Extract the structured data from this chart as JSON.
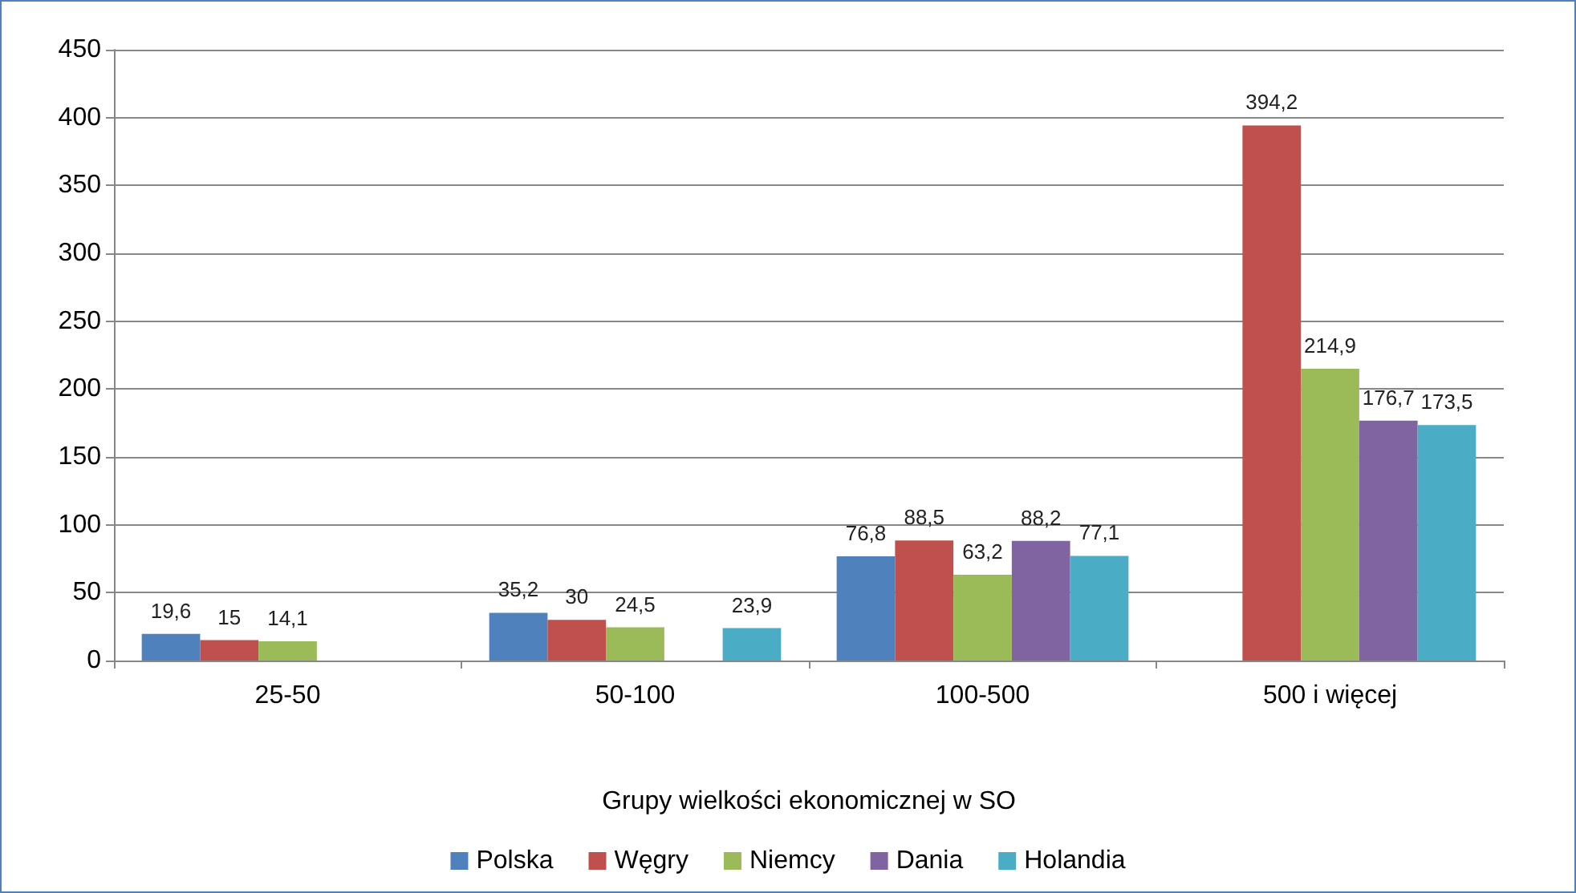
{
  "chart_data": {
    "type": "bar",
    "xlabel": "Grupy wielkości ekonomicznej w SO",
    "categories": [
      "25-50",
      "50-100",
      "100-500",
      "500 i więcej"
    ],
    "series": [
      {
        "name": "Polska",
        "color": "#4f81bd",
        "values": [
          19.6,
          35.2,
          76.8,
          null
        ],
        "value_labels": [
          "19,6",
          "35,2",
          "76,8",
          null
        ]
      },
      {
        "name": "Węgry",
        "color": "#c0504d",
        "values": [
          15,
          30,
          88.5,
          394.2
        ],
        "value_labels": [
          "15",
          "30",
          "88,5",
          "394,2"
        ]
      },
      {
        "name": "Niemcy",
        "color": "#9bbb59",
        "values": [
          14.1,
          24.5,
          63.2,
          214.9
        ],
        "value_labels": [
          "14,1",
          "24,5",
          "63,2",
          "214,9"
        ]
      },
      {
        "name": "Dania",
        "color": "#8064a2",
        "values": [
          null,
          null,
          88.2,
          176.7
        ],
        "value_labels": [
          null,
          null,
          "88,2",
          "176,7"
        ]
      },
      {
        "name": "Holandia",
        "color": "#4bacc6",
        "values": [
          null,
          23.9,
          77.1,
          173.5
        ],
        "value_labels": [
          null,
          "23,9",
          "77,1",
          "173,5"
        ]
      }
    ],
    "ylim": [
      0,
      450
    ],
    "yticks": [
      0,
      50,
      100,
      150,
      200,
      250,
      300,
      350,
      400,
      450
    ],
    "grid": "y",
    "legend": "bottom"
  }
}
